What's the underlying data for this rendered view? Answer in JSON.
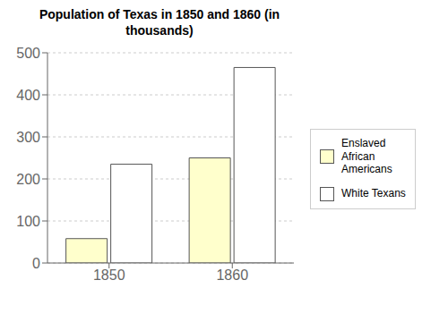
{
  "chart_data": {
    "type": "bar",
    "title": "Population of Texas in 1850 and 1860 (in\nthousands)",
    "categories": [
      "1850",
      "1860"
    ],
    "series": [
      {
        "name": "Enslaved\nAfrican\nAmericans",
        "color": "#ffffcc",
        "values": [
          58,
          250
        ]
      },
      {
        "name": "White Texans",
        "color": "#ffffff",
        "values": [
          235,
          465
        ]
      }
    ],
    "ylim": [
      0,
      500
    ],
    "yticks": [
      0,
      100,
      200,
      300,
      400,
      500
    ],
    "grid": true,
    "legend": "right"
  }
}
